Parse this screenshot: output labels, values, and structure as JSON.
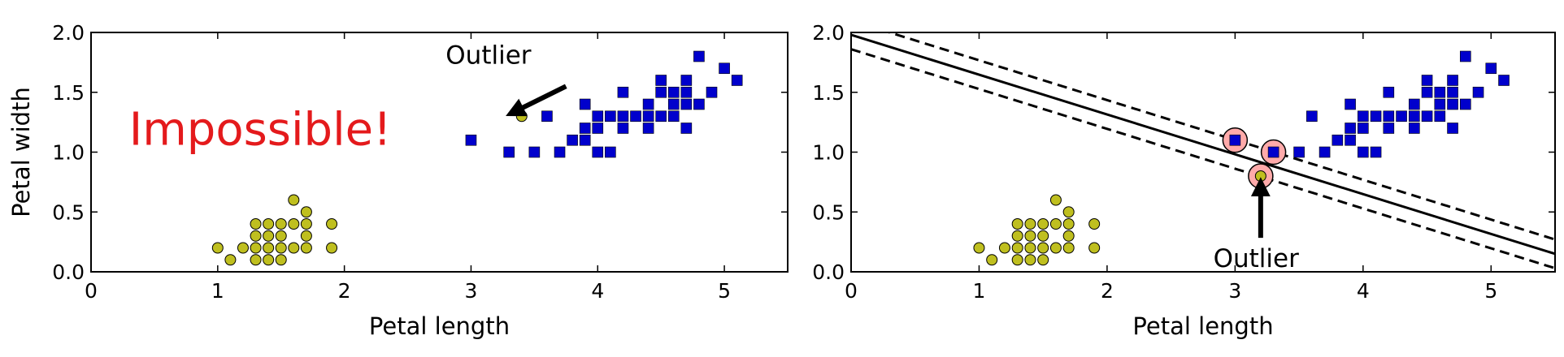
{
  "chart_data": [
    {
      "type": "scatter",
      "xlabel": "Petal length",
      "ylabel": "Petal width",
      "xlim": [
        0,
        5.5
      ],
      "ylim": [
        0,
        2.0
      ],
      "xticks": [
        "0",
        "1",
        "2",
        "3",
        "4",
        "5"
      ],
      "yticks": [
        "0.0",
        "0.5",
        "1.0",
        "1.5",
        "2.0"
      ],
      "grid": false,
      "series": [
        {
          "marker": "circle",
          "color": "#bfbf1f",
          "points": [
            [
              1.0,
              0.2
            ],
            [
              1.1,
              0.1
            ],
            [
              1.2,
              0.2
            ],
            [
              1.3,
              0.1
            ],
            [
              1.3,
              0.2
            ],
            [
              1.3,
              0.3
            ],
            [
              1.3,
              0.4
            ],
            [
              1.4,
              0.1
            ],
            [
              1.4,
              0.2
            ],
            [
              1.4,
              0.3
            ],
            [
              1.4,
              0.4
            ],
            [
              1.5,
              0.1
            ],
            [
              1.5,
              0.2
            ],
            [
              1.5,
              0.3
            ],
            [
              1.5,
              0.4
            ],
            [
              1.6,
              0.2
            ],
            [
              1.6,
              0.4
            ],
            [
              1.6,
              0.6
            ],
            [
              1.7,
              0.2
            ],
            [
              1.7,
              0.3
            ],
            [
              1.7,
              0.4
            ],
            [
              1.7,
              0.5
            ],
            [
              1.9,
              0.2
            ],
            [
              1.9,
              0.4
            ],
            [
              3.4,
              1.3
            ]
          ]
        },
        {
          "marker": "square",
          "color": "#0000cc",
          "points": [
            [
              3.0,
              1.1
            ],
            [
              3.3,
              1.0
            ],
            [
              3.5,
              1.0
            ],
            [
              3.6,
              1.3
            ],
            [
              3.7,
              1.0
            ],
            [
              3.8,
              1.1
            ],
            [
              3.9,
              1.1
            ],
            [
              3.9,
              1.2
            ],
            [
              3.9,
              1.4
            ],
            [
              4.0,
              1.0
            ],
            [
              4.0,
              1.2
            ],
            [
              4.0,
              1.3
            ],
            [
              4.1,
              1.0
            ],
            [
              4.1,
              1.3
            ],
            [
              4.2,
              1.2
            ],
            [
              4.2,
              1.3
            ],
            [
              4.2,
              1.5
            ],
            [
              4.3,
              1.3
            ],
            [
              4.4,
              1.2
            ],
            [
              4.4,
              1.3
            ],
            [
              4.4,
              1.4
            ],
            [
              4.5,
              1.3
            ],
            [
              4.5,
              1.5
            ],
            [
              4.5,
              1.6
            ],
            [
              4.6,
              1.3
            ],
            [
              4.6,
              1.4
            ],
            [
              4.6,
              1.5
            ],
            [
              4.7,
              1.2
            ],
            [
              4.7,
              1.4
            ],
            [
              4.7,
              1.5
            ],
            [
              4.7,
              1.6
            ],
            [
              4.8,
              1.4
            ],
            [
              4.8,
              1.8
            ],
            [
              4.9,
              1.5
            ],
            [
              5.0,
              1.7
            ],
            [
              5.1,
              1.6
            ]
          ]
        }
      ],
      "annotations": [
        {
          "text": "Outlier",
          "x": 2.8,
          "y": 1.74,
          "arrow_to": [
            3.4,
            1.3
          ]
        },
        {
          "text": "Impossible!",
          "x": 0.3,
          "y": 1.06,
          "color": "#e41a1c"
        }
      ]
    },
    {
      "type": "scatter",
      "xlabel": "Petal length",
      "ylabel": "",
      "xlim": [
        0,
        5.5
      ],
      "ylim": [
        0,
        2.0
      ],
      "xticks": [
        "0",
        "1",
        "2",
        "3",
        "4",
        "5"
      ],
      "yticks": [
        "0.0",
        "0.5",
        "1.0",
        "1.5",
        "2.0"
      ],
      "grid": false,
      "series": [
        {
          "marker": "circle",
          "color": "#bfbf1f",
          "points": [
            [
              1.0,
              0.2
            ],
            [
              1.1,
              0.1
            ],
            [
              1.2,
              0.2
            ],
            [
              1.3,
              0.1
            ],
            [
              1.3,
              0.2
            ],
            [
              1.3,
              0.3
            ],
            [
              1.3,
              0.4
            ],
            [
              1.4,
              0.1
            ],
            [
              1.4,
              0.2
            ],
            [
              1.4,
              0.3
            ],
            [
              1.4,
              0.4
            ],
            [
              1.5,
              0.1
            ],
            [
              1.5,
              0.2
            ],
            [
              1.5,
              0.3
            ],
            [
              1.5,
              0.4
            ],
            [
              1.6,
              0.2
            ],
            [
              1.6,
              0.4
            ],
            [
              1.6,
              0.6
            ],
            [
              1.7,
              0.2
            ],
            [
              1.7,
              0.3
            ],
            [
              1.7,
              0.4
            ],
            [
              1.7,
              0.5
            ],
            [
              1.9,
              0.2
            ],
            [
              1.9,
              0.4
            ],
            [
              3.2,
              0.8
            ]
          ]
        },
        {
          "marker": "square",
          "color": "#0000cc",
          "points": [
            [
              3.0,
              1.1
            ],
            [
              3.3,
              1.0
            ],
            [
              3.5,
              1.0
            ],
            [
              3.6,
              1.3
            ],
            [
              3.7,
              1.0
            ],
            [
              3.8,
              1.1
            ],
            [
              3.9,
              1.1
            ],
            [
              3.9,
              1.2
            ],
            [
              3.9,
              1.4
            ],
            [
              4.0,
              1.0
            ],
            [
              4.0,
              1.2
            ],
            [
              4.0,
              1.3
            ],
            [
              4.1,
              1.0
            ],
            [
              4.1,
              1.3
            ],
            [
              4.2,
              1.2
            ],
            [
              4.2,
              1.3
            ],
            [
              4.2,
              1.5
            ],
            [
              4.3,
              1.3
            ],
            [
              4.4,
              1.2
            ],
            [
              4.4,
              1.3
            ],
            [
              4.4,
              1.4
            ],
            [
              4.5,
              1.3
            ],
            [
              4.5,
              1.5
            ],
            [
              4.5,
              1.6
            ],
            [
              4.6,
              1.3
            ],
            [
              4.6,
              1.4
            ],
            [
              4.6,
              1.5
            ],
            [
              4.7,
              1.2
            ],
            [
              4.7,
              1.4
            ],
            [
              4.7,
              1.5
            ],
            [
              4.7,
              1.6
            ],
            [
              4.8,
              1.4
            ],
            [
              4.8,
              1.8
            ],
            [
              4.9,
              1.5
            ],
            [
              5.0,
              1.7
            ],
            [
              5.1,
              1.6
            ]
          ]
        }
      ],
      "lines": [
        {
          "style": "solid",
          "points": [
            [
              0,
              1.98
            ],
            [
              5.5,
              0.15
            ]
          ]
        },
        {
          "style": "dashed",
          "points": [
            [
              0,
              2.1
            ],
            [
              5.5,
              0.27
            ]
          ]
        },
        {
          "style": "dashed",
          "points": [
            [
              0,
              1.86
            ],
            [
              5.5,
              0.03
            ]
          ]
        }
      ],
      "support_vectors": {
        "color": "#ffaaaa",
        "points": [
          [
            3.0,
            1.1
          ],
          [
            3.3,
            1.0
          ],
          [
            3.2,
            0.8
          ]
        ]
      },
      "annotations": [
        {
          "text": "Outlier",
          "x": 2.83,
          "y": 0.04,
          "arrow_to": [
            3.2,
            0.8
          ]
        }
      ]
    }
  ]
}
